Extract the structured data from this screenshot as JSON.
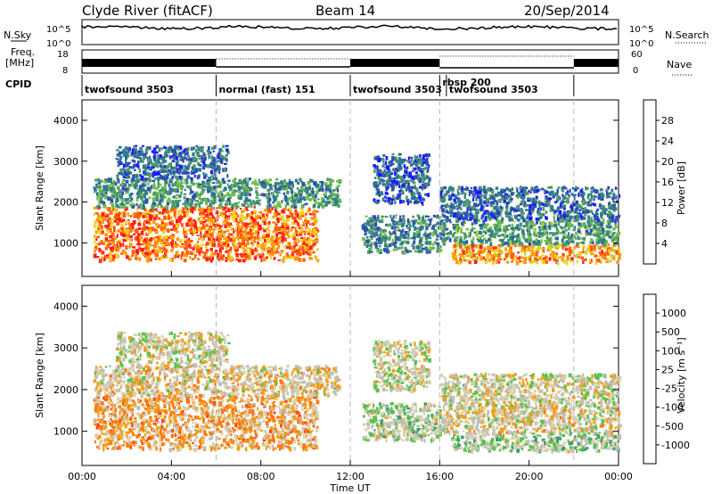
{
  "header": {
    "title": "Clyde River (fitACF)",
    "beam": "Beam 14",
    "date": "20/Sep/2014"
  },
  "panels": {
    "nsky": {
      "label": "N.Sky",
      "tick_top": "10^5",
      "tick_bottom": "10^0"
    },
    "nsearch": {
      "label": "N.Search",
      "tick_top": "10^5",
      "tick_bottom": "10^0"
    },
    "freq": {
      "label": "Freq.",
      "unit": "[MHz]",
      "tick_top": "18",
      "tick_bottom": "8"
    },
    "nave": {
      "label": "Nave",
      "tick_top": "60",
      "tick_bottom": "0"
    },
    "cpid": {
      "label": "CPID"
    }
  },
  "cpid_segments": [
    {
      "label": "twofsound 3503",
      "start_hour": 0.0,
      "end_hour": 6.0
    },
    {
      "label": "normal (fast) 151",
      "start_hour": 6.0,
      "end_hour": 12.0
    },
    {
      "label": "twofsound 3503",
      "start_hour": 12.0,
      "end_hour": 16.0
    },
    {
      "label": "rbsp 200",
      "start_hour": 16.0,
      "end_hour": 16.3
    },
    {
      "label": "twofsound 3503",
      "start_hour": 16.3,
      "end_hour": 22.0
    }
  ],
  "axes": {
    "ylabel": "Slant Range [km]",
    "xlabel": "Time UT",
    "yticks": [
      "1000",
      "2000",
      "3000",
      "4000"
    ],
    "xticks": [
      "00:00",
      "04:00",
      "08:00",
      "12:00",
      "16:00",
      "20:00",
      "00:00"
    ]
  },
  "colorbars": {
    "power": {
      "label": "Power [dB]",
      "ticks": [
        "28",
        "24",
        "20",
        "16",
        "12",
        "8",
        "4"
      ]
    },
    "velocity": {
      "label": "Velocity [m s⁻¹]",
      "ticks": [
        "1000",
        "500",
        "100",
        "25",
        "-25",
        "-100",
        "-500",
        "-1000"
      ]
    }
  },
  "chart_data": [
    {
      "type": "heatmap",
      "title": "Power",
      "xlabel": "Time UT",
      "ylabel": "Slant Range [km]",
      "xlim_hours": [
        0,
        24
      ],
      "ylim_km": [
        180,
        4500
      ],
      "colorbar": {
        "label": "Power [dB]",
        "range": [
          0,
          32
        ],
        "colors": [
          "#1a1aff",
          "#2f4fb0",
          "#2e7d8a",
          "#4f9a6a",
          "#6fbf4a",
          "#b0d440",
          "#f2d020",
          "#ff9a10",
          "#ff5a10",
          "#ff1a1a"
        ]
      },
      "regions": [
        {
          "hours": [
            0.5,
            10.5
          ],
          "km": [
            600,
            1900
          ],
          "value": 26
        },
        {
          "hours": [
            0.5,
            11.5
          ],
          "km": [
            1900,
            2600
          ],
          "value": 10
        },
        {
          "hours": [
            1.5,
            6.5
          ],
          "km": [
            2600,
            3400
          ],
          "value": 7
        },
        {
          "hours": [
            12.5,
            16.0
          ],
          "km": [
            800,
            1700
          ],
          "value": 9
        },
        {
          "hours": [
            13.0,
            15.5
          ],
          "km": [
            2000,
            3200
          ],
          "value": 6
        },
        {
          "hours": [
            16.5,
            24.0
          ],
          "km": [
            550,
            1000
          ],
          "value": 24
        },
        {
          "hours": [
            16.0,
            24.0
          ],
          "km": [
            1000,
            1600
          ],
          "value": 11
        },
        {
          "hours": [
            16.0,
            24.0
          ],
          "km": [
            1600,
            2400
          ],
          "value": 7
        }
      ]
    },
    {
      "type": "heatmap",
      "title": "Velocity",
      "xlabel": "Time UT",
      "ylabel": "Slant Range [km]",
      "xlim_hours": [
        0,
        24
      ],
      "ylim_km": [
        180,
        4500
      ],
      "colorbar": {
        "label": "Velocity [m s⁻¹]",
        "range": [
          -1000,
          1000
        ],
        "colors": [
          "#2a4fb8",
          "#3f7fb0",
          "#3f9a6a",
          "#5bc24a",
          "#c0c0b8",
          "#d8d0b0",
          "#f0a020",
          "#ff7a10",
          "#ff4a10",
          "#e00000"
        ]
      },
      "regions": [
        {
          "hours": [
            0.5,
            10.5
          ],
          "km": [
            600,
            1900
          ],
          "value": 300
        },
        {
          "hours": [
            0.5,
            11.5
          ],
          "km": [
            1900,
            2600
          ],
          "value": 120
        },
        {
          "hours": [
            1.5,
            6.5
          ],
          "km": [
            2600,
            3400
          ],
          "value": 0
        },
        {
          "hours": [
            12.5,
            16.0
          ],
          "km": [
            800,
            1700
          ],
          "value": -120
        },
        {
          "hours": [
            13.0,
            15.5
          ],
          "km": [
            2000,
            3200
          ],
          "value": 0
        },
        {
          "hours": [
            16.5,
            24.0
          ],
          "km": [
            550,
            1000
          ],
          "value": -150
        },
        {
          "hours": [
            16.0,
            24.0
          ],
          "km": [
            1000,
            1600
          ],
          "value": 80
        },
        {
          "hours": [
            16.0,
            24.0
          ],
          "km": [
            1600,
            2400
          ],
          "value": 10
        }
      ]
    }
  ]
}
